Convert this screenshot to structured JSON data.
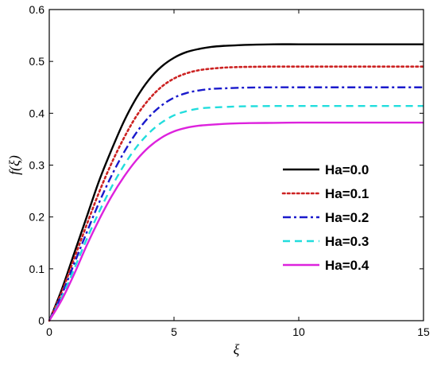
{
  "chart_data": {
    "type": "line",
    "xlabel": "ξ",
    "ylabel": "f(ξ)",
    "xlim": [
      0,
      15
    ],
    "ylim": [
      0,
      0.6
    ],
    "xticks": [
      0,
      5,
      10,
      15
    ],
    "xtick_labels": [
      "0",
      "5",
      "10",
      "15"
    ],
    "yticks": [
      0,
      0.1,
      0.2,
      0.3,
      0.4,
      0.5,
      0.6
    ],
    "ytick_labels": [
      "0",
      "0.1",
      "0.2",
      "0.3",
      "0.4",
      "0.5",
      "0.6"
    ],
    "grid": false,
    "legend_position": "center-right",
    "x": [
      0,
      0.5,
      1,
      1.5,
      2,
      2.5,
      3,
      3.5,
      4,
      4.5,
      5,
      5.5,
      6,
      6.5,
      7,
      7.5,
      8,
      9,
      10,
      11,
      12,
      13,
      14,
      15
    ],
    "series": [
      {
        "name": "Ha=0.0",
        "color": "#000000",
        "dash": "solid",
        "values": [
          0,
          0.06,
          0.13,
          0.2,
          0.27,
          0.33,
          0.385,
          0.43,
          0.465,
          0.49,
          0.507,
          0.518,
          0.524,
          0.528,
          0.53,
          0.531,
          0.532,
          0.533,
          0.533,
          0.533,
          0.533,
          0.533,
          0.533,
          0.533
        ]
      },
      {
        "name": "Ha=0.1",
        "color": "#cc2222",
        "dash": "dotted",
        "values": [
          0,
          0.055,
          0.12,
          0.185,
          0.248,
          0.304,
          0.353,
          0.395,
          0.427,
          0.451,
          0.467,
          0.477,
          0.483,
          0.486,
          0.488,
          0.489,
          0.4895,
          0.49,
          0.49,
          0.49,
          0.49,
          0.49,
          0.49,
          0.49
        ]
      },
      {
        "name": "Ha=0.2",
        "color": "#1a1acc",
        "dash": "dashdot",
        "values": [
          0,
          0.05,
          0.11,
          0.17,
          0.228,
          0.28,
          0.325,
          0.363,
          0.393,
          0.415,
          0.43,
          0.439,
          0.444,
          0.447,
          0.448,
          0.449,
          0.4495,
          0.45,
          0.45,
          0.45,
          0.45,
          0.45,
          0.45,
          0.45
        ]
      },
      {
        "name": "Ha=0.3",
        "color": "#22dddd",
        "dash": "dashed",
        "values": [
          0,
          0.045,
          0.1,
          0.157,
          0.21,
          0.258,
          0.3,
          0.335,
          0.362,
          0.382,
          0.396,
          0.404,
          0.409,
          0.411,
          0.412,
          0.413,
          0.4135,
          0.414,
          0.414,
          0.414,
          0.414,
          0.414,
          0.414,
          0.414
        ]
      },
      {
        "name": "Ha=0.4",
        "color": "#dd22dd",
        "dash": "solid",
        "values": [
          0,
          0.04,
          0.09,
          0.145,
          0.195,
          0.24,
          0.278,
          0.31,
          0.335,
          0.353,
          0.365,
          0.372,
          0.376,
          0.378,
          0.3795,
          0.3805,
          0.381,
          0.3815,
          0.382,
          0.382,
          0.382,
          0.382,
          0.382,
          0.382
        ]
      }
    ]
  }
}
